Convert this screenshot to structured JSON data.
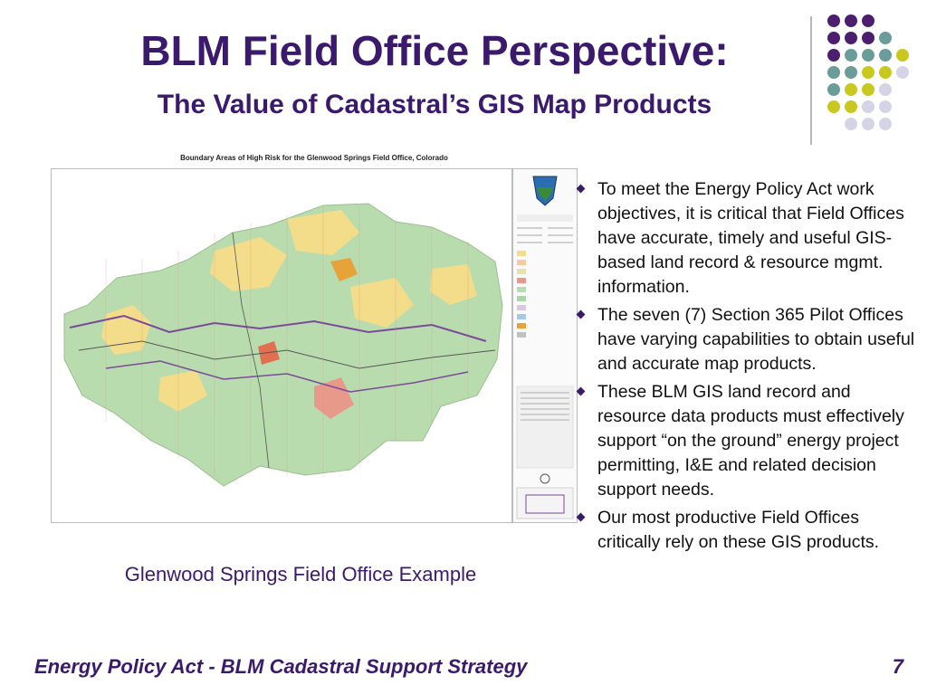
{
  "slide": {
    "title": "BLM Field Office Perspective:",
    "subtitle": "The Value of Cadastral’s GIS Map Products",
    "map": {
      "title": "Boundary Areas of High Risk for the Glenwood Springs Field Office, Colorado",
      "caption": "Glenwood Springs Field Office Example"
    },
    "bullets": [
      "To meet the Energy Policy Act work objectives, it is critical that Field Offices have accurate, timely and useful GIS-based land record & resource mgmt. information.",
      "The seven (7) Section 365 Pilot Offices have varying capabilities to obtain useful and accurate map products.",
      "These BLM GIS land record and resource data products must effectively support “on the ground” energy project permitting, I&E and related decision support needs.",
      "Our most productive Field Offices critically rely on these GIS products."
    ],
    "footer": "Energy Policy Act - BLM Cadastral Support Strategy",
    "page_number": "7"
  },
  "colors": {
    "title": "#3b1a6e",
    "dot_purple": "#4b1e6e",
    "dot_teal": "#6a9c9a",
    "dot_yellow": "#c8c81e",
    "dot_lavender": "#d4d4e6"
  }
}
